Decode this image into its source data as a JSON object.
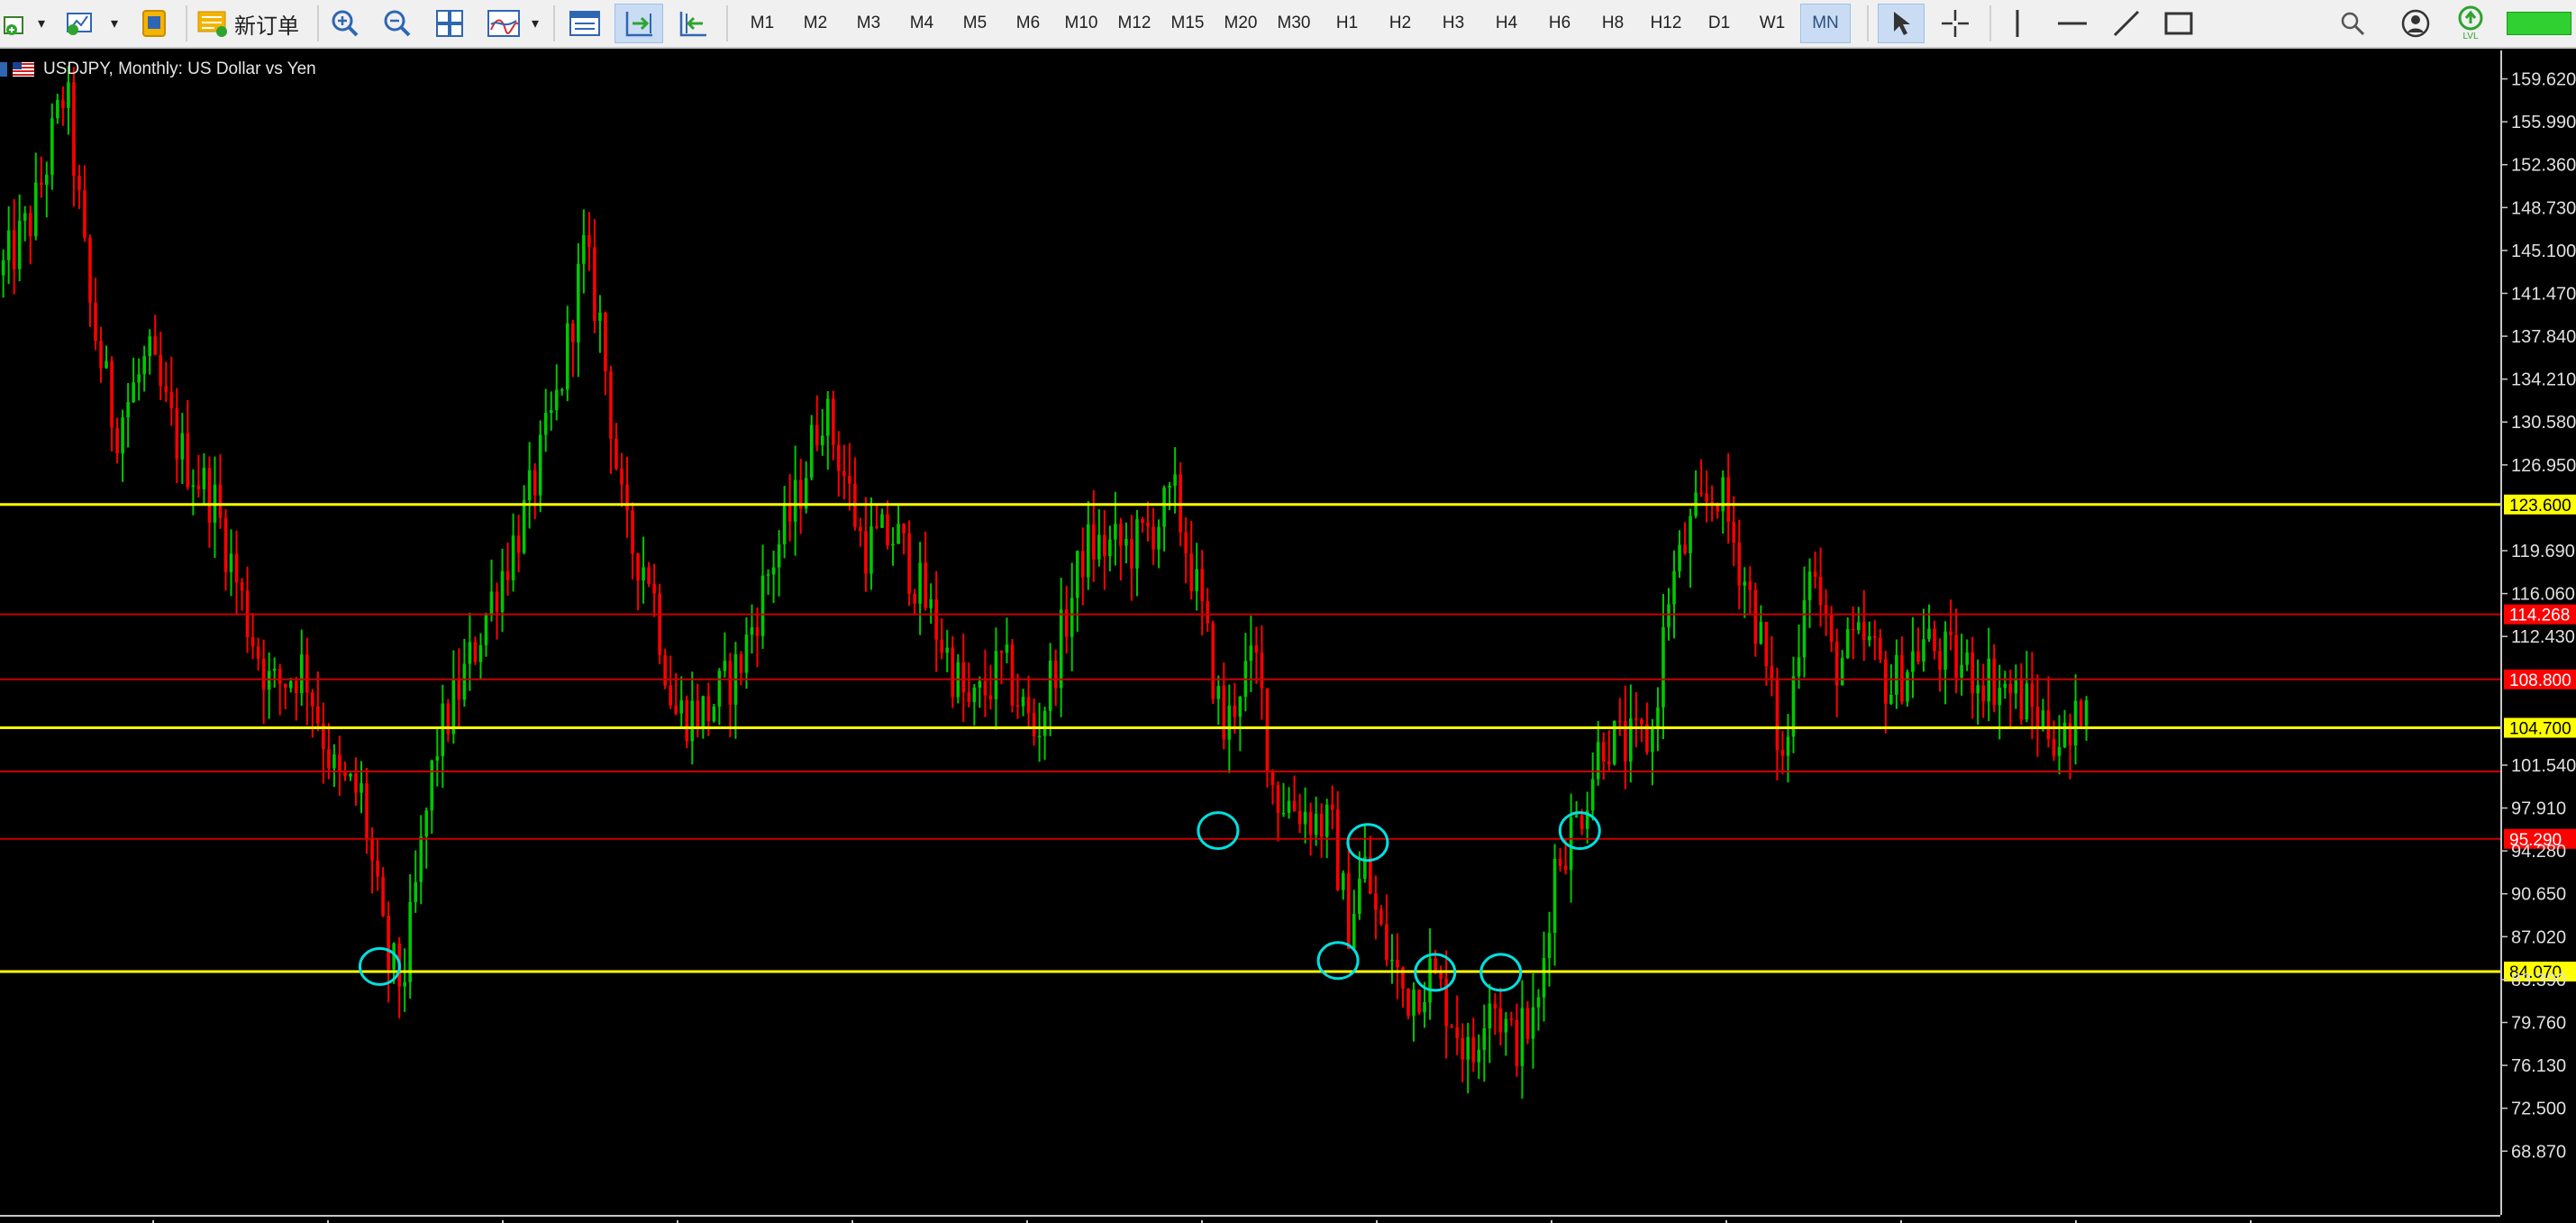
{
  "toolbar": {
    "new_order_label": "新订单",
    "timeframes": [
      "M1",
      "M2",
      "M3",
      "M4",
      "M5",
      "M6",
      "M10",
      "M12",
      "M15",
      "M20",
      "M30",
      "H1",
      "H2",
      "H3",
      "H4",
      "H6",
      "H8",
      "H12",
      "D1",
      "W1",
      "MN"
    ],
    "active_timeframe": "MN",
    "icons": [
      "new-chart-icon",
      "profiles-icon",
      "strategy-tester-icon",
      "new-order-icon",
      "zoom-in-icon",
      "zoom-out-icon",
      "tile-windows-icon",
      "indicators-icon",
      "chart-window-icon",
      "autoscroll-icon",
      "chart-shift-icon",
      "cursor-icon",
      "crosshair-icon",
      "vertical-line-icon",
      "horizontal-line-icon",
      "trendline-icon",
      "rectangle-icon",
      "search-icon",
      "account-icon",
      "signal-level-icon"
    ],
    "signal_label": "LVL"
  },
  "chart": {
    "title": "USDJPY, Monthly:  US Dollar vs Yen",
    "colors": {
      "bull": "#00c800",
      "bear": "#ff0000",
      "support_yellow": "#ffff00",
      "support_red": "#c80000",
      "circle": "#00e0e0",
      "background": "#000000"
    }
  },
  "price_axis": {
    "min": 65.0,
    "max": 160.5,
    "ticks": [
      "159.620",
      "155.990",
      "152.360",
      "148.730",
      "145.100",
      "141.470",
      "137.840",
      "134.210",
      "130.580",
      "126.950",
      "119.690",
      "116.060",
      "112.430",
      "101.540",
      "97.910",
      "94.280",
      "90.650",
      "87.020",
      "83.390",
      "79.760",
      "76.130",
      "72.500",
      "68.870"
    ]
  },
  "levels": [
    {
      "price": 123.6,
      "label": "123.600",
      "style": "yellow",
      "label_bg": "#ffff00",
      "label_fg": "#000000"
    },
    {
      "price": 114.3,
      "label": "114.268",
      "style": "red",
      "label_bg": "#ff0000",
      "label_fg": "#ffffff"
    },
    {
      "price": 108.8,
      "label": "108.800",
      "style": "red",
      "label_bg": "#ff0000",
      "label_fg": "#ffffff"
    },
    {
      "price": 104.7,
      "label": "104.700",
      "style": "yellow",
      "label_bg": "#ffff00",
      "label_fg": "#000000"
    },
    {
      "price": 101.0,
      "label": "",
      "style": "red",
      "label_bg": "",
      "label_fg": ""
    },
    {
      "price": 95.3,
      "label": "95.290",
      "style": "red",
      "label_bg": "#ff0000",
      "label_fg": "#ffffff"
    },
    {
      "price": 84.07,
      "label": "84.070",
      "style": "yellow",
      "label_bg": "#ffff00",
      "label_fg": "#000000"
    }
  ],
  "chart_data": {
    "type": "candlestick",
    "title": "USDJPY, Monthly:  US Dollar vs Yen",
    "ylim": [
      65.0,
      160.5
    ],
    "grid": false,
    "close_path": [
      [
        0,
        143
      ],
      [
        20,
        148
      ],
      [
        40,
        159
      ],
      [
        55,
        140
      ],
      [
        70,
        130
      ],
      [
        90,
        136
      ],
      [
        110,
        128
      ],
      [
        130,
        124
      ],
      [
        150,
        114
      ],
      [
        165,
        108
      ],
      [
        185,
        110
      ],
      [
        205,
        100
      ],
      [
        220,
        99
      ],
      [
        235,
        85
      ],
      [
        245,
        83
      ],
      [
        265,
        103
      ],
      [
        285,
        110
      ],
      [
        300,
        116
      ],
      [
        320,
        123
      ],
      [
        340,
        133
      ],
      [
        355,
        145
      ],
      [
        365,
        139
      ],
      [
        380,
        121
      ],
      [
        395,
        118
      ],
      [
        410,
        106
      ],
      [
        430,
        106
      ],
      [
        450,
        110
      ],
      [
        470,
        119
      ],
      [
        485,
        124
      ],
      [
        500,
        132
      ],
      [
        510,
        128
      ],
      [
        525,
        120
      ],
      [
        545,
        121
      ],
      [
        570,
        113
      ],
      [
        590,
        106
      ],
      [
        610,
        110
      ],
      [
        630,
        104
      ],
      [
        660,
        120
      ],
      [
        690,
        120
      ],
      [
        715,
        124
      ],
      [
        730,
        115
      ],
      [
        745,
        104
      ],
      [
        755,
        109
      ],
      [
        765,
        110
      ],
      [
        775,
        99
      ],
      [
        790,
        98
      ],
      [
        810,
        96
      ],
      [
        820,
        88
      ],
      [
        830,
        93
      ],
      [
        840,
        87
      ],
      [
        855,
        82
      ],
      [
        870,
        84
      ],
      [
        885,
        80
      ],
      [
        895,
        76
      ],
      [
        905,
        83
      ],
      [
        920,
        78
      ],
      [
        935,
        80
      ],
      [
        945,
        93
      ],
      [
        960,
        97
      ],
      [
        975,
        104
      ],
      [
        990,
        103
      ],
      [
        1005,
        104
      ],
      [
        1015,
        116
      ],
      [
        1030,
        122
      ],
      [
        1045,
        125
      ],
      [
        1060,
        118
      ],
      [
        1070,
        113
      ],
      [
        1085,
        101
      ],
      [
        1100,
        120
      ],
      [
        1115,
        110
      ],
      [
        1135,
        112
      ],
      [
        1150,
        108
      ],
      [
        1170,
        112
      ],
      [
        1190,
        110
      ],
      [
        1210,
        109
      ],
      [
        1230,
        107
      ],
      [
        1245,
        105
      ],
      [
        1260,
        103
      ],
      [
        1272,
        111
      ]
    ],
    "circle_markers": [
      [
        231,
        84.5
      ],
      [
        741,
        96.0
      ],
      [
        832,
        95.0
      ],
      [
        814,
        85.0
      ],
      [
        873,
        84.0
      ],
      [
        913,
        84.0
      ],
      [
        961,
        96.0
      ]
    ]
  }
}
